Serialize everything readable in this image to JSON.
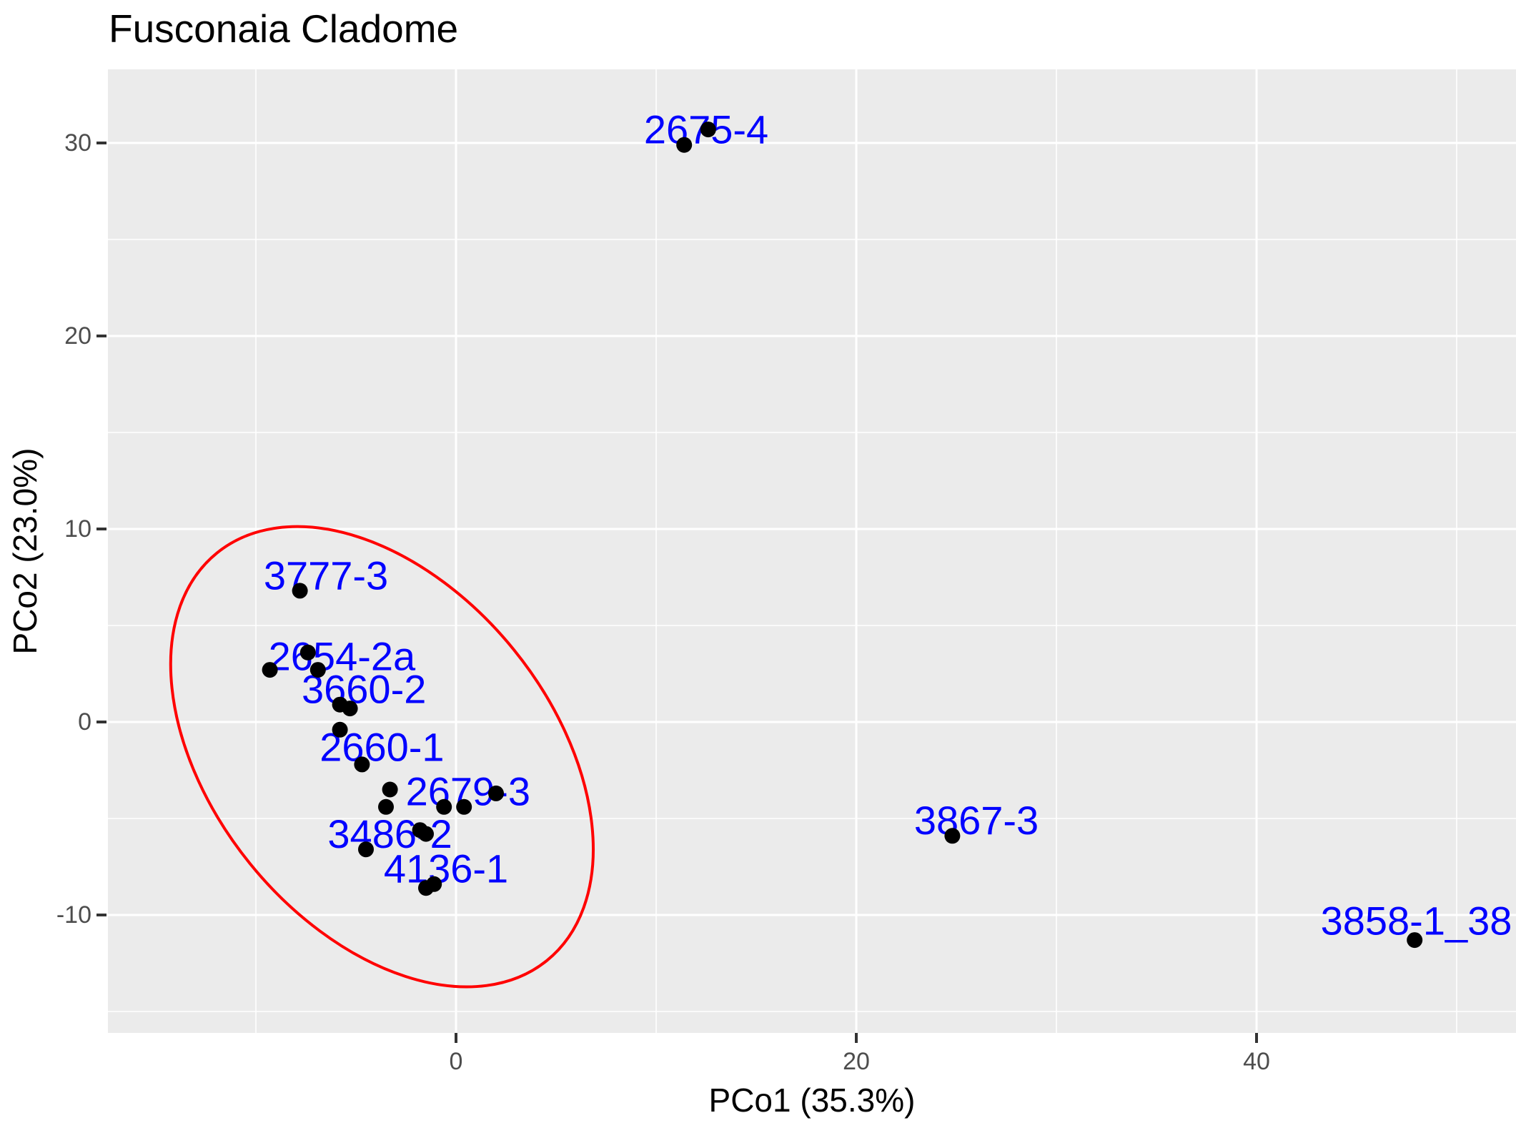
{
  "title": "Fusconaia Cladome",
  "chart_data": {
    "type": "scatter",
    "title": "Fusconaia Cladome",
    "xlabel": "PCo1 (35.3%)",
    "ylabel": "PCo2 (23.0%)",
    "xlim": [
      -17.4,
      53.0
    ],
    "ylim": [
      -16.1,
      33.8
    ],
    "x_ticks": [
      0,
      20,
      40
    ],
    "y_ticks": [
      30,
      20,
      10,
      0,
      -10
    ],
    "x_minor_gridlines": [
      -10,
      10,
      30,
      50
    ],
    "y_minor_gridlines": [
      -15,
      -5,
      5,
      15,
      25
    ],
    "grid": "on",
    "legend": "none",
    "panel_background": "#EBEBEB",
    "gridline_color": "#FFFFFF",
    "point_color": "#000000",
    "label_color": "#0000FF",
    "ellipse_color": "#FF0000",
    "tick_text_color": "#4D4D4D",
    "points": [
      {
        "x": -7.8,
        "y": 6.8
      },
      {
        "x": -9.3,
        "y": 2.7
      },
      {
        "x": -7.4,
        "y": 3.6
      },
      {
        "x": -6.9,
        "y": 2.7
      },
      {
        "x": -5.8,
        "y": 0.9
      },
      {
        "x": -5.3,
        "y": 0.7
      },
      {
        "x": -5.8,
        "y": -0.4
      },
      {
        "x": -4.7,
        "y": -2.2
      },
      {
        "x": -3.3,
        "y": -3.5
      },
      {
        "x": -3.5,
        "y": -4.4
      },
      {
        "x": -0.6,
        "y": -4.4
      },
      {
        "x": 0.4,
        "y": -4.4
      },
      {
        "x": 2.0,
        "y": -3.7
      },
      {
        "x": -1.8,
        "y": -5.6
      },
      {
        "x": -1.5,
        "y": -5.8
      },
      {
        "x": -4.5,
        "y": -6.6
      },
      {
        "x": -1.5,
        "y": -8.6
      },
      {
        "x": -1.1,
        "y": -8.4
      },
      {
        "x": 11.4,
        "y": 29.9
      },
      {
        "x": 12.6,
        "y": 30.7
      },
      {
        "x": 24.8,
        "y": -5.9
      },
      {
        "x": 47.9,
        "y": -11.3
      }
    ],
    "point_labels": [
      {
        "text": "2675-4",
        "x": 12.5,
        "y": 30.7,
        "anchor": "middle"
      },
      {
        "text": "3777-3",
        "x": -6.5,
        "y": 7.6,
        "anchor": "middle"
      },
      {
        "text": "2654-2a",
        "x": -5.7,
        "y": 3.4,
        "anchor": "middle"
      },
      {
        "text": "3660-2",
        "x": -4.6,
        "y": 1.7,
        "anchor": "middle"
      },
      {
        "text": "2660-1",
        "x": -3.7,
        "y": -1.3,
        "anchor": "middle"
      },
      {
        "text": "2679-3",
        "x": 0.6,
        "y": -3.6,
        "anchor": "middle"
      },
      {
        "text": "3486-2",
        "x": -3.3,
        "y": -5.8,
        "anchor": "middle"
      },
      {
        "text": "4136-1",
        "x": -0.5,
        "y": -7.6,
        "anchor": "middle"
      },
      {
        "text": "3867-3",
        "x": 26.0,
        "y": -5.1,
        "anchor": "middle"
      },
      {
        "text": "3858-1_38",
        "x": 43.2,
        "y": -10.3,
        "anchor": "start"
      }
    ],
    "ellipse": {
      "cx": -3.7,
      "cy": -1.8,
      "rx_units": 13.1,
      "ry_units": 8.8,
      "angle_deg": 51
    }
  }
}
